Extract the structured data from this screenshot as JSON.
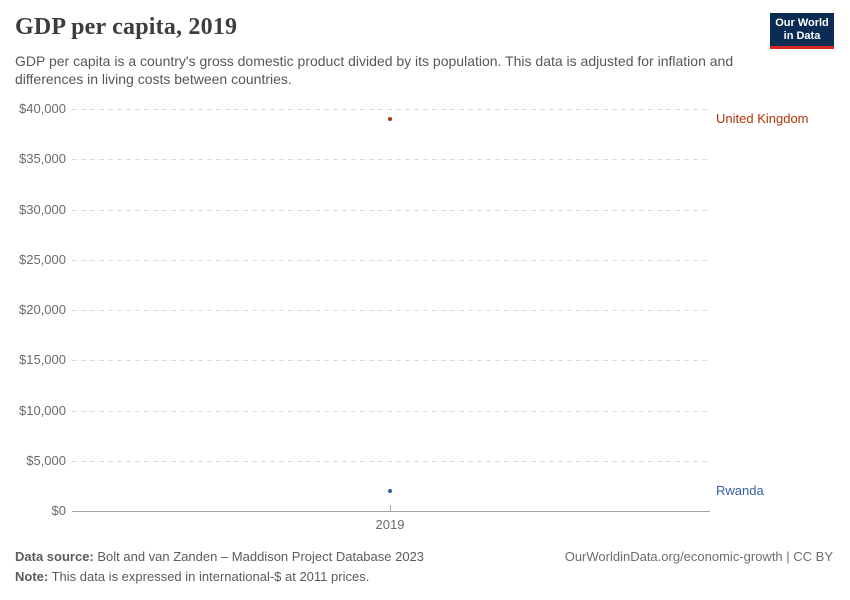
{
  "header": {
    "title": "GDP per capita, 2019",
    "subtitle": "GDP per capita is a country's gross domestic product divided by its population. This data is adjusted for inflation and differences in living costs between countries.",
    "logo": {
      "line1": "Our World",
      "line2": "in Data",
      "bg_color": "#0A2C52",
      "bar_color": "#D8291F"
    }
  },
  "chart_data": {
    "type": "scatter",
    "title": "GDP per capita, 2019",
    "x": [
      2019
    ],
    "x_tick_labels": [
      "2019"
    ],
    "series": [
      {
        "name": "United Kingdom",
        "values": [
          39000
        ],
        "color": "#B13507"
      },
      {
        "name": "Rwanda",
        "values": [
          2000
        ],
        "color": "#3360A9"
      }
    ],
    "xlabel": "",
    "ylabel": "",
    "ylim": [
      0,
      40000
    ],
    "y_tick_values": [
      40000,
      35000,
      30000,
      25000,
      20000,
      15000,
      10000,
      5000,
      0
    ],
    "y_tick_labels": [
      "$40,000",
      "$35,000",
      "$30,000",
      "$25,000",
      "$20,000",
      "$15,000",
      "$10,000",
      "$5,000",
      "$0"
    ],
    "grid": "horizontal-dashed",
    "legend_position": "right-entity-labels",
    "unit": "international-$ at 2011 prices"
  },
  "footer": {
    "source_label": "Data source:",
    "source_text": " Bolt and van Zanden – Maddison Project Database 2023",
    "note_label": "Note:",
    "note_text": " This data is expressed in international-$ at 2011 prices.",
    "rights": "OurWorldinData.org/economic-growth | CC BY"
  }
}
